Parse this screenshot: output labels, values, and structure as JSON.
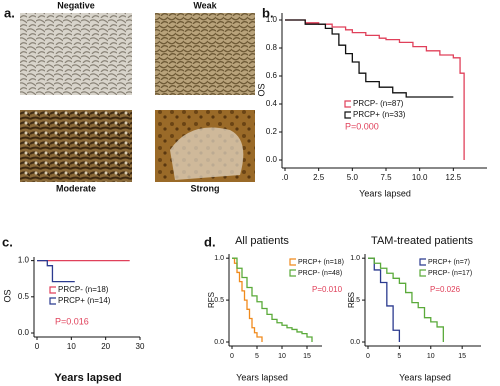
{
  "figure_a": {
    "panel": "a.",
    "captions": [
      "Negative",
      "Weak",
      "Moderate",
      "Strong"
    ]
  },
  "chart_data": [
    {
      "type": "line",
      "step": true,
      "panel": "b.",
      "ylabel": "OS",
      "xlabel": "Years lapsed",
      "annotation": "P=0.000",
      "annotation_color": "#e0405a",
      "xlim": [
        0,
        15
      ],
      "ylim": [
        0,
        1.05
      ],
      "xticks": [
        {
          "value": 0,
          "label": ".0"
        },
        2.5,
        {
          "value": 5,
          "label": "5.0"
        },
        7.5,
        {
          "value": 10,
          "label": "10.0"
        },
        12.5
      ],
      "yticks": [
        {
          "value": 0,
          "label": "0.0"
        },
        0.2,
        0.4,
        0.6,
        0.8,
        {
          "value": 1,
          "label": "1.0"
        }
      ],
      "series": [
        {
          "name": "PRCP- (n=87)",
          "color": "#e0405a",
          "x": [
            0,
            1.5,
            2.5,
            3.5,
            4.5,
            5,
            6,
            7,
            7.5,
            8.5,
            9.5,
            10.5,
            11.5,
            12.5,
            13,
            13.3
          ],
          "values": [
            1,
            0.98,
            0.97,
            0.95,
            0.93,
            0.91,
            0.89,
            0.87,
            0.86,
            0.84,
            0.81,
            0.78,
            0.75,
            0.73,
            0.62,
            0
          ]
        },
        {
          "name": "PRCP+ (n=33)",
          "color": "#111111",
          "x": [
            0,
            1.5,
            3,
            3.5,
            4,
            4.5,
            5,
            5.5,
            6,
            7,
            8,
            9,
            12.5
          ],
          "values": [
            1,
            0.97,
            0.94,
            0.9,
            0.82,
            0.76,
            0.7,
            0.62,
            0.56,
            0.52,
            0.48,
            0.45,
            0.45
          ]
        }
      ]
    },
    {
      "type": "line",
      "step": true,
      "panel": "c.",
      "ylabel": "OS",
      "xlabel": "Years lapsed",
      "annotation": "P=0.016",
      "annotation_color": "#e0405a",
      "xlim": [
        0,
        30
      ],
      "ylim": [
        0,
        1.05
      ],
      "xticks": [
        0,
        10,
        20,
        30
      ],
      "yticks": [
        {
          "value": 0,
          "label": "0.0"
        },
        0.5,
        {
          "value": 1,
          "label": "1.0"
        }
      ],
      "series": [
        {
          "name": "PRCP- (n=18)",
          "color": "#e0405a",
          "x": [
            0,
            27
          ],
          "values": [
            1,
            1
          ]
        },
        {
          "name": "PRCP+ (n=14)",
          "color": "#2b3a8f",
          "x": [
            0,
            3,
            4.5,
            11
          ],
          "values": [
            1,
            0.93,
            0.71,
            0.71
          ]
        }
      ]
    },
    {
      "type": "line",
      "step": true,
      "panel": "d.",
      "title": "All patients",
      "ylabel": "RFS",
      "xlabel": "Years lapsed",
      "annotation": "P=0.010",
      "annotation_color": "#e0405a",
      "xlim": [
        0,
        18
      ],
      "ylim": [
        0,
        1.05
      ],
      "xticks": [
        0,
        5,
        10,
        15
      ],
      "yticks": [
        {
          "value": 0,
          "label": "0.0"
        },
        0.5,
        {
          "value": 1,
          "label": "1.0"
        }
      ],
      "series": [
        {
          "name": "PRCP+ (n=18)",
          "color": "#f08a1c",
          "x": [
            0,
            0.5,
            1,
            1.5,
            2,
            2.5,
            3,
            3.5,
            4,
            4.5,
            5,
            6
          ],
          "values": [
            1,
            0.94,
            0.83,
            0.72,
            0.61,
            0.5,
            0.39,
            0.28,
            0.17,
            0.11,
            0.06,
            0
          ]
        },
        {
          "name": "PRCP- (n=48)",
          "color": "#5aaa3a",
          "x": [
            0,
            1,
            2,
            3,
            4,
            5,
            6,
            7,
            8,
            9,
            10,
            11,
            12,
            13,
            14,
            15,
            16
          ],
          "values": [
            1,
            0.88,
            0.77,
            0.65,
            0.55,
            0.48,
            0.4,
            0.33,
            0.27,
            0.23,
            0.2,
            0.17,
            0.15,
            0.12,
            0.1,
            0.06,
            0
          ]
        }
      ]
    },
    {
      "type": "line",
      "step": true,
      "title": "TAM-treated patients",
      "ylabel": "RFS",
      "xlabel": "Years lapsed",
      "annotation": "P=0.026",
      "annotation_color": "#e0405a",
      "xlim": [
        0,
        18
      ],
      "ylim": [
        0,
        1.05
      ],
      "xticks": [
        0,
        5,
        10,
        15
      ],
      "yticks": [
        {
          "value": 0,
          "label": "0.0"
        },
        0.5,
        {
          "value": 1,
          "label": "1.0"
        }
      ],
      "series": [
        {
          "name": "PRCP+ (n=7)",
          "color": "#2b3a8f",
          "x": [
            0,
            1,
            2,
            3,
            4,
            5
          ],
          "values": [
            1,
            0.86,
            0.71,
            0.43,
            0.14,
            0
          ]
        },
        {
          "name": "PRCP- (n=17)",
          "color": "#5aaa3a",
          "x": [
            0,
            1,
            2,
            3,
            4,
            5,
            6,
            7,
            8,
            9,
            10,
            11,
            12
          ],
          "values": [
            1,
            0.94,
            0.88,
            0.82,
            0.76,
            0.7,
            0.59,
            0.47,
            0.41,
            0.29,
            0.24,
            0.18,
            0
          ]
        }
      ]
    }
  ]
}
